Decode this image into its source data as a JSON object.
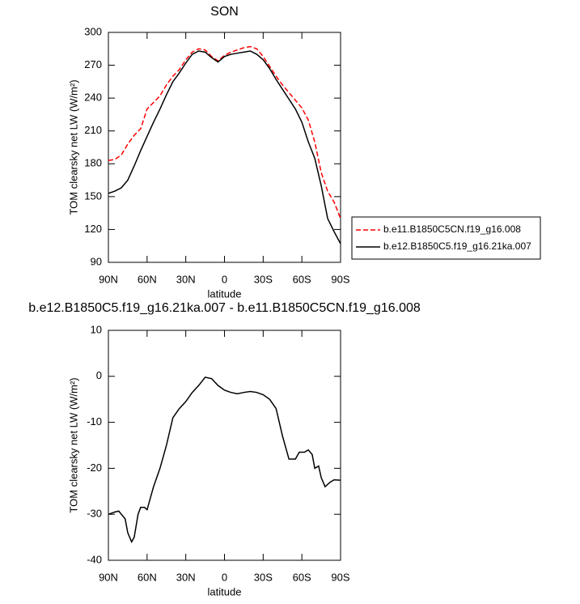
{
  "chart_data": [
    {
      "type": "line",
      "title": "SON",
      "xlabel": "latitude",
      "ylabel": "TOM clearsky net LW (W/m²)",
      "x": [
        90,
        85,
        80,
        75,
        70,
        65,
        60,
        55,
        50,
        45,
        40,
        35,
        30,
        25,
        20,
        15,
        10,
        5,
        0,
        -5,
        -10,
        -15,
        -20,
        -25,
        -30,
        -35,
        -40,
        -45,
        -50,
        -55,
        -60,
        -65,
        -70,
        -75,
        -80,
        -85,
        -90
      ],
      "series": [
        {
          "name": "b.e11.B1850C5CN.f19_g16.008",
          "color": "#ff0000",
          "dash": true,
          "values": [
            183,
            184,
            188,
            198,
            206,
            212,
            230,
            236,
            242,
            252,
            260,
            266,
            275,
            282,
            285,
            284,
            278,
            274,
            279,
            282,
            284,
            286,
            287,
            285,
            278,
            269,
            260,
            252,
            245,
            238,
            231,
            220,
            200,
            172,
            155,
            145,
            130
          ]
        },
        {
          "name": "b.e12.B1850C5.f19_g16.21ka.007",
          "color": "#000000",
          "dash": false,
          "values": [
            153,
            155,
            158,
            165,
            178,
            192,
            205,
            218,
            230,
            243,
            255,
            263,
            272,
            280,
            283,
            282,
            277,
            273,
            278,
            280,
            281,
            282,
            283,
            280,
            275,
            267,
            257,
            248,
            239,
            230,
            218,
            200,
            185,
            160,
            130,
            118,
            107
          ]
        }
      ],
      "xlim": [
        90,
        -90
      ],
      "xticks": [
        {
          "value": 90,
          "label": "90N"
        },
        {
          "value": 60,
          "label": "60N"
        },
        {
          "value": 30,
          "label": "30N"
        },
        0,
        {
          "value": -30,
          "label": "30S"
        },
        {
          "value": -60,
          "label": "60S"
        },
        {
          "value": -90,
          "label": "90S"
        }
      ],
      "ylim": [
        90,
        300
      ],
      "yticks": [
        90,
        120,
        150,
        180,
        210,
        240,
        270,
        300
      ],
      "legend": "right"
    },
    {
      "type": "line",
      "title": "b.e12.B1850C5.f19_g16.21ka.007 - b.e11.B1850C5CN.f19_g16.008",
      "xlabel": "latitude",
      "ylabel": "TOM clearsky net LW (W/m²)",
      "x": [
        90,
        85,
        82,
        77,
        75,
        72,
        70,
        67,
        65,
        62,
        60,
        58,
        55,
        50,
        45,
        40,
        35,
        30,
        25,
        20,
        15,
        10,
        5,
        0,
        -5,
        -10,
        -15,
        -20,
        -25,
        -30,
        -35,
        -40,
        -45,
        -50,
        -55,
        -58,
        -62,
        -65,
        -68,
        -70,
        -73,
        -75,
        -78,
        -82,
        -85,
        -90
      ],
      "series": [
        {
          "color": "#000000",
          "dash": false,
          "values": [
            -30,
            -29.5,
            -29.3,
            -31,
            -34,
            -36,
            -35,
            -30,
            -28.5,
            -28.5,
            -29,
            -27,
            -24,
            -20,
            -15,
            -9,
            -7,
            -5.5,
            -3.5,
            -2,
            -0.2,
            -0.5,
            -2,
            -3,
            -3.5,
            -3.8,
            -3.5,
            -3.3,
            -3.5,
            -4,
            -5,
            -7,
            -13,
            -18,
            -18,
            -16.5,
            -16.5,
            -16,
            -17,
            -20,
            -19.5,
            -22,
            -24,
            -23,
            -22.5,
            -22.6
          ]
        }
      ],
      "xlim": [
        90,
        -90
      ],
      "xticks": [
        {
          "value": 90,
          "label": "90N"
        },
        {
          "value": 60,
          "label": "60N"
        },
        {
          "value": 30,
          "label": "30N"
        },
        0,
        {
          "value": -30,
          "label": "30S"
        },
        {
          "value": -60,
          "label": "60S"
        },
        {
          "value": -90,
          "label": "90S"
        }
      ],
      "ylim": [
        -40,
        10
      ],
      "yticks": [
        -40,
        -30,
        -20,
        -10,
        0,
        10
      ]
    }
  ]
}
